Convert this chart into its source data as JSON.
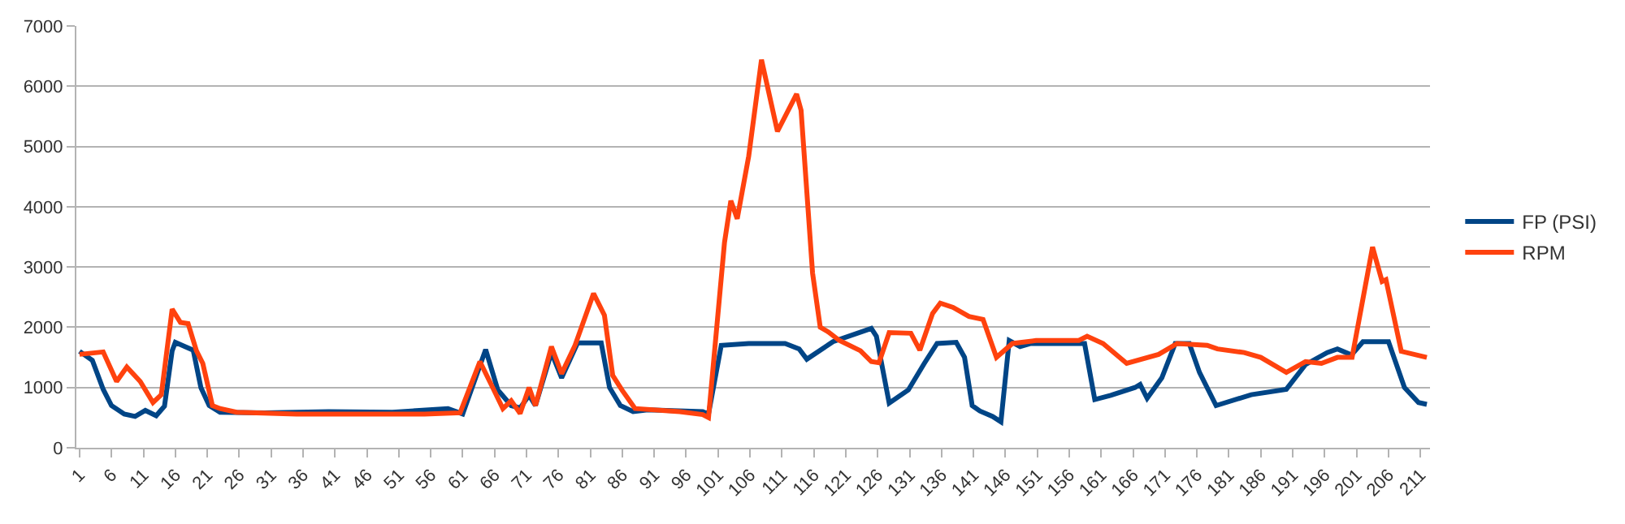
{
  "chart_data": {
    "type": "line",
    "series": [
      {
        "name": "FP (PSI)",
        "color": "#004586",
        "x": [
          1,
          3,
          4.7,
          6,
          8,
          9.7,
          11.3,
          13,
          14.3,
          15.5,
          16,
          17.5,
          18.8,
          20,
          21.3,
          23,
          30,
          40,
          50,
          58.7,
          61,
          64.6,
          66.5,
          68.6,
          70,
          71.4,
          72.4,
          74.9,
          76.5,
          79,
          82.7,
          84,
          85.7,
          87.7,
          90,
          98.6,
          99.5,
          101.5,
          105.8,
          111.5,
          113.7,
          114.9,
          119,
          125,
          125.8,
          127.8,
          130.8,
          133.3,
          135.3,
          138.3,
          139.6,
          140.8,
          142,
          144,
          145.3,
          146.6,
          148.3,
          150,
          158.4,
          160,
          162.5,
          166.3,
          167.1,
          168.2,
          170.5,
          172.6,
          174.8,
          176.4,
          179,
          184.5,
          190,
          193,
          196.4,
          198,
          200.2,
          202,
          206,
          208.5,
          210.7,
          212
        ],
        "values": [
          1600,
          1450,
          970,
          700,
          560,
          520,
          620,
          532,
          690,
          1610,
          1750,
          1680,
          1620,
          1000,
          700,
          590,
          580,
          600,
          590,
          650,
          560,
          1630,
          960,
          700,
          660,
          870,
          700,
          1580,
          1160,
          1740,
          1740,
          1000,
          700,
          600,
          630,
          600,
          560,
          1700,
          1730,
          1730,
          1640,
          1470,
          1760,
          1980,
          1850,
          740,
          960,
          1400,
          1730,
          1750,
          1500,
          700,
          610,
          520,
          430,
          1780,
          1680,
          1730,
          1730,
          800,
          870,
          1000,
          1050,
          820,
          1160,
          1730,
          1730,
          1250,
          700,
          880,
          970,
          1380,
          1580,
          1640,
          1540,
          1760,
          1760,
          1000,
          750,
          720
        ]
      },
      {
        "name": "RPM",
        "color": "#ff420e",
        "x": [
          1,
          4.7,
          6.8,
          8.4,
          10.5,
          12.5,
          13.8,
          15.5,
          16.8,
          18,
          19.3,
          20.3,
          21.8,
          23,
          25.6,
          35,
          45,
          55,
          60.6,
          63.7,
          65.7,
          67.3,
          68.6,
          70,
          71.4,
          72.4,
          74.9,
          76.5,
          78.6,
          81.5,
          83.2,
          84.5,
          86,
          88,
          95,
          98.6,
          99.5,
          102,
          103,
          104,
          105.8,
          107.8,
          110.3,
          113.3,
          114,
          115.8,
          117,
          118.3,
          120,
          123.3,
          125,
          126.2,
          127.8,
          131.2,
          132.6,
          134.6,
          135.8,
          137.8,
          140.3,
          142.5,
          144.6,
          147.1,
          150.8,
          157.5,
          158.8,
          161.3,
          165,
          170,
          172.9,
          177.6,
          179.2,
          183.4,
          186,
          190,
          193,
          195.5,
          198,
          200.3,
          203.5,
          205,
          205.6,
          208,
          212
        ],
        "values": [
          1550,
          1590,
          1100,
          1340,
          1100,
          750,
          880,
          2300,
          2080,
          2060,
          1610,
          1400,
          700,
          650,
          590,
          560,
          560,
          560,
          580,
          1430,
          1000,
          650,
          780,
          570,
          1000,
          700,
          1680,
          1230,
          1700,
          2560,
          2200,
          1200,
          950,
          650,
          600,
          550,
          500,
          3400,
          4100,
          3800,
          4840,
          6440,
          5250,
          5870,
          5600,
          2900,
          2000,
          1920,
          1780,
          1610,
          1430,
          1410,
          1910,
          1900,
          1620,
          2230,
          2400,
          2330,
          2180,
          2130,
          1500,
          1730,
          1780,
          1780,
          1850,
          1730,
          1400,
          1550,
          1730,
          1700,
          1640,
          1580,
          1500,
          1250,
          1430,
          1400,
          1500,
          1500,
          3330,
          2760,
          2790,
          1600,
          1500
        ]
      }
    ],
    "xlim": [
      0.5,
      212.5
    ],
    "xticks": [
      1,
      6,
      11,
      16,
      21,
      26,
      31,
      36,
      41,
      46,
      51,
      56,
      61,
      66,
      71,
      76,
      81,
      86,
      91,
      96,
      101,
      106,
      111,
      116,
      121,
      126,
      131,
      136,
      141,
      146,
      151,
      156,
      161,
      166,
      171,
      176,
      181,
      186,
      191,
      196,
      201,
      206,
      211
    ],
    "ylim": [
      0,
      7000
    ],
    "yticks": [
      0,
      1000,
      2000,
      3000,
      4000,
      5000,
      6000,
      7000
    ],
    "grid": "y",
    "legend": "right",
    "marker": "none",
    "line_style": "solid"
  }
}
